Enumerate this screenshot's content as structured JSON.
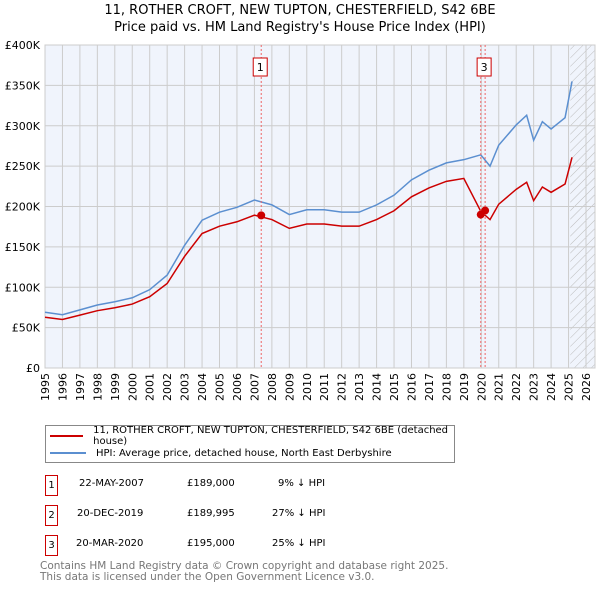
{
  "title": "11, ROTHER CROFT, NEW TUPTON, CHESTERFIELD, S42 6BE",
  "subtitle": "Price paid vs. HM Land Registry's House Price Index (HPI)",
  "colors": {
    "property": "#cc0000",
    "hpi": "#5b8fd0",
    "bg": "#f0f4fc"
  },
  "chart_data": {
    "type": "line",
    "title": "11, ROTHER CROFT, NEW TUPTON, CHESTERFIELD, S42 6BE",
    "ylim": [
      0,
      400000
    ],
    "xlim": [
      1995,
      2026
    ],
    "yticks": [
      {
        "v": 0,
        "label": "£0"
      },
      {
        "v": 50000,
        "label": "£50K"
      },
      {
        "v": 100000,
        "label": "£100K"
      },
      {
        "v": 150000,
        "label": "£150K"
      },
      {
        "v": 200000,
        "label": "£200K"
      },
      {
        "v": 250000,
        "label": "£250K"
      },
      {
        "v": 300000,
        "label": "£300K"
      },
      {
        "v": 350000,
        "label": "£350K"
      },
      {
        "v": 400000,
        "label": "£400K"
      }
    ],
    "xticks": [
      "1995",
      "1996",
      "1997",
      "1998",
      "1999",
      "2000",
      "2001",
      "2002",
      "2003",
      "2004",
      "2005",
      "2006",
      "2007",
      "2008",
      "2009",
      "2010",
      "2011",
      "2012",
      "2013",
      "2014",
      "2015",
      "2016",
      "2017",
      "2018",
      "2019",
      "2020",
      "2021",
      "2022",
      "2023",
      "2024",
      "2025",
      "2026"
    ],
    "hpi": {
      "name": "HPI: Average price, detached house, North East Derbyshire",
      "x": [
        1995,
        1996,
        1997,
        1998,
        1999,
        2000,
        2001,
        2002,
        2003,
        2004,
        2005,
        2006,
        2007,
        2008,
        2009,
        2010,
        2011,
        2012,
        2013,
        2014,
        2015,
        2016,
        2017,
        2018,
        2019,
        2019.97,
        2020.5,
        2021,
        2022,
        2022.6,
        2023,
        2023.5,
        2024,
        2024.8,
        2025.2
      ],
      "y": [
        69000,
        66000,
        72000,
        78000,
        82000,
        87000,
        97000,
        115000,
        152000,
        183000,
        193000,
        199000,
        208000,
        202000,
        190000,
        196000,
        196000,
        193000,
        193000,
        202000,
        214000,
        233000,
        245000,
        254000,
        258000,
        264000,
        250000,
        276000,
        301000,
        313000,
        282000,
        305000,
        296000,
        310000,
        355000
      ]
    },
    "property": {
      "name": "11, ROTHER CROFT, NEW TUPTON, CHESTERFIELD, S42 6BE (detached house)",
      "factor_before": 0.91,
      "factor_after": 0.735,
      "change_year": 2019.96
    },
    "sales": [
      {
        "n": "1",
        "date": "22-MAY-2007",
        "price": "£189,000",
        "hpi": "9% ↓ HPI",
        "x": 2007.39,
        "value": 189000
      },
      {
        "n": "2",
        "date": "20-DEC-2019",
        "price": "£189,995",
        "hpi": "27% ↓ HPI",
        "x": 2019.97,
        "value": 189995
      },
      {
        "n": "3",
        "date": "20-MAR-2020",
        "price": "£195,000",
        "hpi": "25% ↓ HPI",
        "x": 2020.22,
        "value": 195000
      }
    ],
    "forecast_from": 2025.1
  },
  "legend": {
    "property": "11, ROTHER CROFT, NEW TUPTON, CHESTERFIELD, S42 6BE (detached house)",
    "hpi": "HPI: Average price, detached house, North East Derbyshire"
  },
  "footer": [
    "Contains HM Land Registry data © Crown copyright and database right 2025.",
    "This data is licensed under the Open Government Licence v3.0."
  ]
}
